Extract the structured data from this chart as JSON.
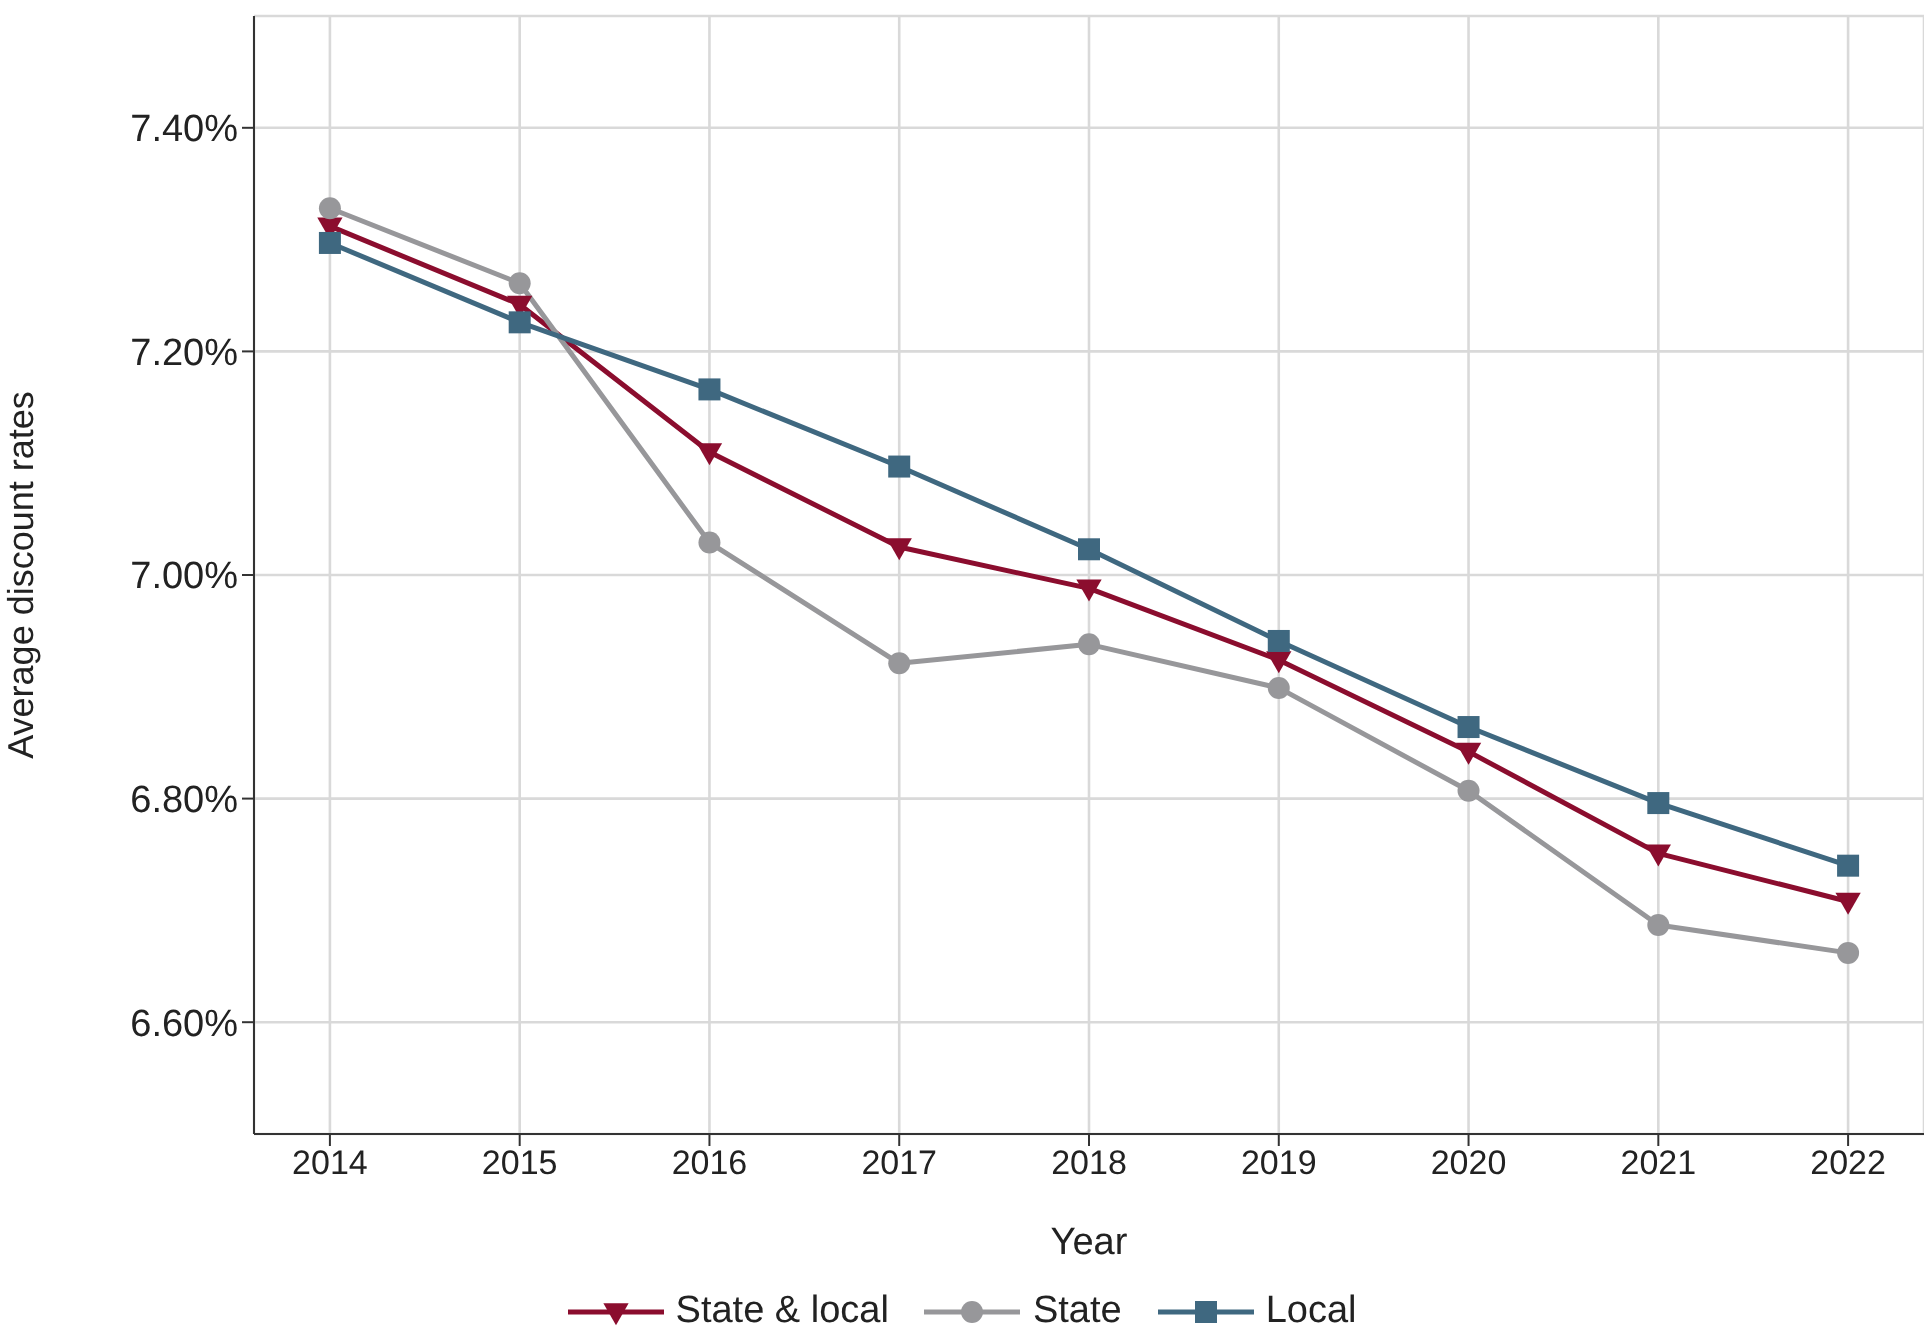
{
  "chart_data": {
    "type": "line",
    "xlabel": "Year",
    "ylabel": "Average discount rates",
    "x": [
      2014,
      2015,
      2016,
      2017,
      2018,
      2019,
      2020,
      2021,
      2022
    ],
    "series": [
      {
        "name": "State & local",
        "color": "#8b0d2e",
        "marker": "triangle",
        "values": [
          7.312,
          7.242,
          7.11,
          7.025,
          6.988,
          6.924,
          6.842,
          6.751,
          6.708
        ]
      },
      {
        "name": "State",
        "color": "#97979a",
        "marker": "circle",
        "values": [
          7.328,
          7.261,
          7.029,
          6.921,
          6.938,
          6.899,
          6.807,
          6.687,
          6.662
        ]
      },
      {
        "name": "Local",
        "color": "#3f6880",
        "marker": "square",
        "values": [
          7.297,
          7.226,
          7.166,
          7.097,
          7.023,
          6.941,
          6.864,
          6.796,
          6.74
        ]
      }
    ],
    "xlim": [
      2013.6,
      2022.4
    ],
    "xticks": [
      2014,
      2015,
      2016,
      2017,
      2018,
      2019,
      2020,
      2021,
      2022
    ],
    "ylim": [
      6.5,
      7.5
    ],
    "yticks": [
      {
        "value": 6.6,
        "label": "6.60%"
      },
      {
        "value": 6.8,
        "label": "6.80%"
      },
      {
        "value": 7.0,
        "label": "7.00%"
      },
      {
        "value": 7.2,
        "label": "7.20%"
      },
      {
        "value": 7.4,
        "label": "7.40%"
      }
    ],
    "grid": true,
    "legend": "bottom",
    "line_style": "solid"
  }
}
